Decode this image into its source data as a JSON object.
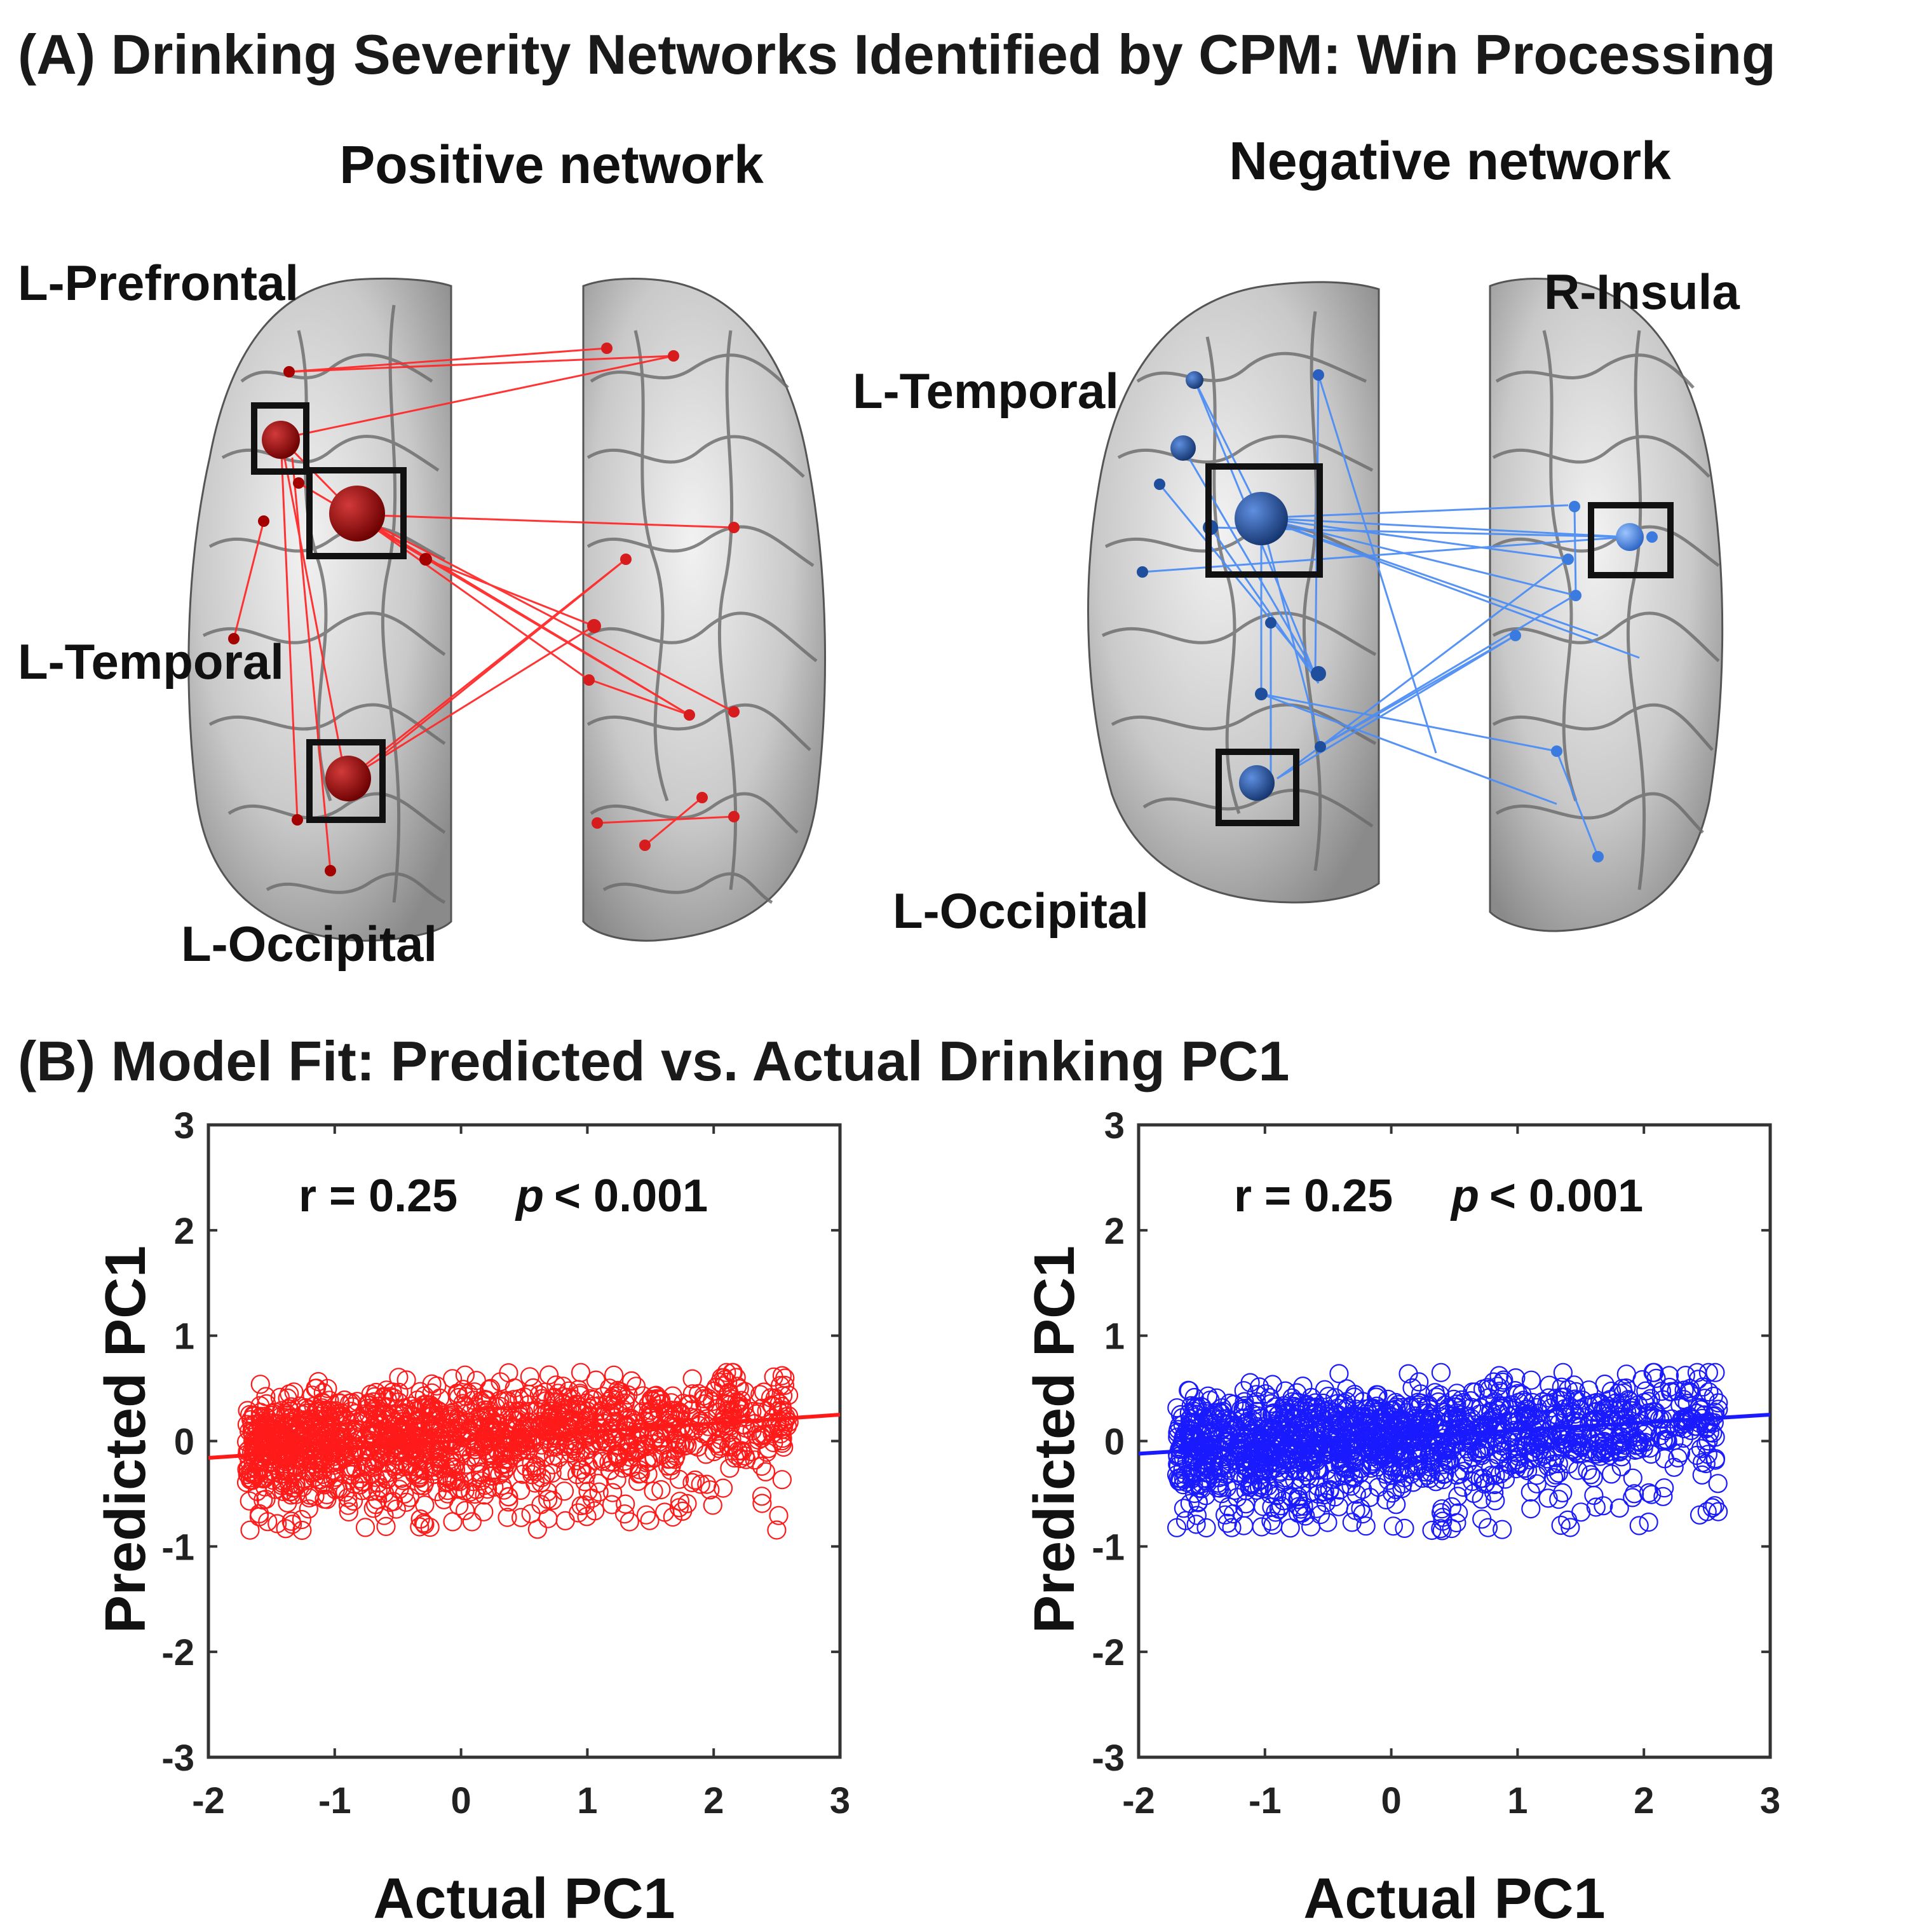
{
  "panel_a": {
    "title": "(A) Drinking Severity Networks Identified by CPM: Win Processing",
    "positive": {
      "title": "Positive network",
      "color": "#ff2a2a",
      "node_color": "#8b0000",
      "region_labels": [
        "L-Prefrontal",
        "L-Temporal",
        "L-Occipital"
      ]
    },
    "negative": {
      "title": "Negative network",
      "color": "#4d8ef5",
      "node_color": "#1f4e9c",
      "region_labels": [
        "L-Temporal",
        "L-Occipital",
        "R-Insula"
      ]
    }
  },
  "panel_b": {
    "title": "(B) Model Fit: Predicted vs. Actual Drinking PC1"
  },
  "chart_data": [
    {
      "type": "scatter",
      "name": "positive-network-fit",
      "color": "#ff1a1a",
      "stat_r": "r = 0.25",
      "stat_p_symbol": "p",
      "stat_p_value": "<  0.001",
      "xlabel": "Actual PC1",
      "ylabel": "Predicted PC1",
      "xlim": [
        -2,
        3
      ],
      "ylim": [
        -3,
        3
      ],
      "xticks": [
        "-2",
        "-1",
        "0",
        "1",
        "2",
        "3"
      ],
      "yticks": [
        "-3",
        "-2",
        "-1",
        "0",
        "1",
        "2",
        "3"
      ],
      "grid": false,
      "n_points": 1500,
      "x_range": [
        -1.7,
        2.6
      ],
      "y_range": [
        -0.9,
        0.65
      ],
      "fit_line": {
        "x": [
          -2,
          3
        ],
        "y": [
          -0.16,
          0.25
        ]
      }
    },
    {
      "type": "scatter",
      "name": "negative-network-fit",
      "color": "#1a1aff",
      "stat_r": "r = 0.25",
      "stat_p_symbol": "p",
      "stat_p_value": "<  0.001",
      "xlabel": "Actual PC1",
      "ylabel": "Predicted PC1",
      "xlim": [
        -2,
        3
      ],
      "ylim": [
        -3,
        3
      ],
      "xticks": [
        "-2",
        "-1",
        "0",
        "1",
        "2",
        "3"
      ],
      "yticks": [
        "-3",
        "-2",
        "-1",
        "0",
        "1",
        "2",
        "3"
      ],
      "grid": false,
      "n_points": 1500,
      "x_range": [
        -1.7,
        2.6
      ],
      "y_range": [
        -0.9,
        0.65
      ],
      "fit_line": {
        "x": [
          -2,
          3
        ],
        "y": [
          -0.12,
          0.25
        ]
      }
    }
  ]
}
